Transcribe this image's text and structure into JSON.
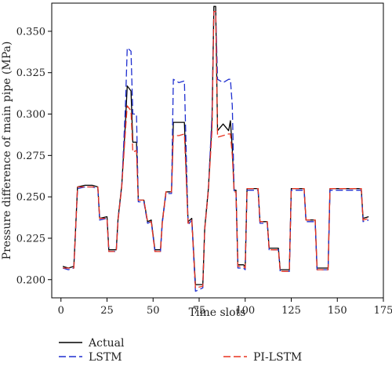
{
  "chart_data": {
    "type": "line",
    "title": "",
    "xlabel": "Time slots",
    "ylabel": "Pressure difference of main pipe (MPa)",
    "xlim": [
      -5,
      175
    ],
    "ylim": [
      0.189,
      0.367
    ],
    "x_ticks": [
      0,
      25,
      50,
      75,
      100,
      125,
      150,
      175
    ],
    "y_ticks": [
      0.2,
      0.225,
      0.25,
      0.275,
      0.3,
      0.325,
      0.35
    ],
    "y_tick_labels": [
      "0.200",
      "0.225",
      "0.250",
      "0.275",
      "0.300",
      "0.325",
      "0.350"
    ],
    "grid": false,
    "legend": "bottom",
    "series": [
      {
        "name": "Actual",
        "color": "#000000",
        "style": "solid",
        "points": [
          [
            1,
            0.208
          ],
          [
            4,
            0.207
          ],
          [
            7,
            0.208
          ],
          [
            9,
            0.256
          ],
          [
            13,
            0.257
          ],
          [
            17,
            0.257
          ],
          [
            20,
            0.256
          ],
          [
            21,
            0.237
          ],
          [
            25,
            0.238
          ],
          [
            26,
            0.218
          ],
          [
            30,
            0.218
          ],
          [
            31,
            0.237
          ],
          [
            33,
            0.257
          ],
          [
            35,
            0.295
          ],
          [
            36,
            0.317
          ],
          [
            38,
            0.314
          ],
          [
            39,
            0.283
          ],
          [
            41,
            0.283
          ],
          [
            42,
            0.248
          ],
          [
            45,
            0.248
          ],
          [
            47,
            0.235
          ],
          [
            49,
            0.236
          ],
          [
            51,
            0.218
          ],
          [
            54,
            0.218
          ],
          [
            55,
            0.235
          ],
          [
            57,
            0.253
          ],
          [
            60,
            0.253
          ],
          [
            61,
            0.295
          ],
          [
            64,
            0.295
          ],
          [
            67,
            0.295
          ],
          [
            69,
            0.235
          ],
          [
            71,
            0.237
          ],
          [
            73,
            0.197
          ],
          [
            77,
            0.197
          ],
          [
            78,
            0.231
          ],
          [
            80,
            0.255
          ],
          [
            82,
            0.295
          ],
          [
            83,
            0.365
          ],
          [
            84,
            0.365
          ],
          [
            85,
            0.29
          ],
          [
            88,
            0.294
          ],
          [
            91,
            0.29
          ],
          [
            92,
            0.296
          ],
          [
            93,
            0.279
          ],
          [
            94,
            0.254
          ],
          [
            95,
            0.254
          ],
          [
            96,
            0.209
          ],
          [
            99,
            0.209
          ],
          [
            100,
            0.208
          ],
          [
            101,
            0.255
          ],
          [
            105,
            0.255
          ],
          [
            107,
            0.255
          ],
          [
            108,
            0.235
          ],
          [
            112,
            0.235
          ],
          [
            113,
            0.219
          ],
          [
            116,
            0.219
          ],
          [
            118,
            0.219
          ],
          [
            119,
            0.206
          ],
          [
            123,
            0.206
          ],
          [
            124,
            0.206
          ],
          [
            125,
            0.255
          ],
          [
            130,
            0.255
          ],
          [
            132,
            0.255
          ],
          [
            133,
            0.236
          ],
          [
            136,
            0.236
          ],
          [
            138,
            0.236
          ],
          [
            139,
            0.207
          ],
          [
            143,
            0.207
          ],
          [
            145,
            0.207
          ],
          [
            146,
            0.255
          ],
          [
            150,
            0.255
          ],
          [
            157,
            0.255
          ],
          [
            160,
            0.255
          ],
          [
            161,
            0.255
          ],
          [
            163,
            0.255
          ],
          [
            164,
            0.237
          ],
          [
            167,
            0.238
          ]
        ]
      },
      {
        "name": "LSTM",
        "color": "#1f2fd0",
        "style": "dashed",
        "points": [
          [
            1,
            0.207
          ],
          [
            4,
            0.206
          ],
          [
            7,
            0.207
          ],
          [
            9,
            0.255
          ],
          [
            13,
            0.256
          ],
          [
            17,
            0.256
          ],
          [
            20,
            0.255
          ],
          [
            21,
            0.236
          ],
          [
            25,
            0.237
          ],
          [
            26,
            0.217
          ],
          [
            30,
            0.217
          ],
          [
            31,
            0.236
          ],
          [
            33,
            0.256
          ],
          [
            35,
            0.305
          ],
          [
            36,
            0.34
          ],
          [
            38,
            0.338
          ],
          [
            39,
            0.3
          ],
          [
            41,
            0.3
          ],
          [
            42,
            0.247
          ],
          [
            45,
            0.247
          ],
          [
            47,
            0.234
          ],
          [
            49,
            0.235
          ],
          [
            51,
            0.217
          ],
          [
            54,
            0.217
          ],
          [
            55,
            0.234
          ],
          [
            57,
            0.252
          ],
          [
            60,
            0.252
          ],
          [
            61,
            0.321
          ],
          [
            64,
            0.319
          ],
          [
            67,
            0.32
          ],
          [
            69,
            0.233
          ],
          [
            71,
            0.236
          ],
          [
            73,
            0.193
          ],
          [
            77,
            0.195
          ],
          [
            78,
            0.23
          ],
          [
            80,
            0.254
          ],
          [
            82,
            0.3
          ],
          [
            83,
            0.362
          ],
          [
            84,
            0.362
          ],
          [
            85,
            0.321
          ],
          [
            88,
            0.319
          ],
          [
            91,
            0.321
          ],
          [
            92,
            0.321
          ],
          [
            93,
            0.305
          ],
          [
            94,
            0.253
          ],
          [
            95,
            0.253
          ],
          [
            96,
            0.207
          ],
          [
            99,
            0.207
          ],
          [
            100,
            0.206
          ],
          [
            101,
            0.254
          ],
          [
            105,
            0.254
          ],
          [
            107,
            0.254
          ],
          [
            108,
            0.234
          ],
          [
            112,
            0.234
          ],
          [
            113,
            0.218
          ],
          [
            116,
            0.218
          ],
          [
            118,
            0.218
          ],
          [
            119,
            0.205
          ],
          [
            123,
            0.205
          ],
          [
            124,
            0.205
          ],
          [
            125,
            0.254
          ],
          [
            130,
            0.254
          ],
          [
            132,
            0.254
          ],
          [
            133,
            0.235
          ],
          [
            136,
            0.235
          ],
          [
            138,
            0.235
          ],
          [
            139,
            0.206
          ],
          [
            143,
            0.206
          ],
          [
            145,
            0.206
          ],
          [
            146,
            0.254
          ],
          [
            150,
            0.254
          ],
          [
            157,
            0.254
          ],
          [
            160,
            0.254
          ],
          [
            161,
            0.254
          ],
          [
            163,
            0.254
          ],
          [
            164,
            0.235
          ],
          [
            167,
            0.236
          ]
        ]
      },
      {
        "name": "PI-LSTM",
        "color": "#e8321e",
        "style": "dashed",
        "points": [
          [
            1,
            0.207
          ],
          [
            4,
            0.207
          ],
          [
            7,
            0.207
          ],
          [
            9,
            0.256
          ],
          [
            13,
            0.256
          ],
          [
            17,
            0.256
          ],
          [
            20,
            0.256
          ],
          [
            21,
            0.237
          ],
          [
            25,
            0.237
          ],
          [
            26,
            0.217
          ],
          [
            30,
            0.217
          ],
          [
            31,
            0.236
          ],
          [
            33,
            0.256
          ],
          [
            35,
            0.29
          ],
          [
            36,
            0.305
          ],
          [
            38,
            0.302
          ],
          [
            39,
            0.277
          ],
          [
            41,
            0.278
          ],
          [
            42,
            0.248
          ],
          [
            45,
            0.248
          ],
          [
            47,
            0.235
          ],
          [
            49,
            0.235
          ],
          [
            51,
            0.217
          ],
          [
            54,
            0.217
          ],
          [
            55,
            0.234
          ],
          [
            57,
            0.253
          ],
          [
            60,
            0.253
          ],
          [
            61,
            0.287
          ],
          [
            64,
            0.287
          ],
          [
            67,
            0.288
          ],
          [
            69,
            0.234
          ],
          [
            71,
            0.236
          ],
          [
            73,
            0.195
          ],
          [
            77,
            0.196
          ],
          [
            78,
            0.23
          ],
          [
            80,
            0.254
          ],
          [
            82,
            0.29
          ],
          [
            83,
            0.362
          ],
          [
            84,
            0.362
          ],
          [
            85,
            0.286
          ],
          [
            88,
            0.287
          ],
          [
            91,
            0.288
          ],
          [
            92,
            0.288
          ],
          [
            93,
            0.275
          ],
          [
            94,
            0.253
          ],
          [
            95,
            0.253
          ],
          [
            96,
            0.208
          ],
          [
            99,
            0.208
          ],
          [
            100,
            0.207
          ],
          [
            101,
            0.255
          ],
          [
            105,
            0.255
          ],
          [
            107,
            0.255
          ],
          [
            108,
            0.235
          ],
          [
            112,
            0.235
          ],
          [
            113,
            0.218
          ],
          [
            116,
            0.218
          ],
          [
            118,
            0.218
          ],
          [
            119,
            0.205
          ],
          [
            123,
            0.205
          ],
          [
            124,
            0.205
          ],
          [
            125,
            0.255
          ],
          [
            130,
            0.255
          ],
          [
            132,
            0.255
          ],
          [
            133,
            0.236
          ],
          [
            136,
            0.236
          ],
          [
            138,
            0.236
          ],
          [
            139,
            0.206
          ],
          [
            143,
            0.206
          ],
          [
            145,
            0.206
          ],
          [
            146,
            0.255
          ],
          [
            150,
            0.255
          ],
          [
            157,
            0.255
          ],
          [
            160,
            0.255
          ],
          [
            161,
            0.255
          ],
          [
            163,
            0.255
          ],
          [
            164,
            0.236
          ],
          [
            167,
            0.237
          ]
        ]
      }
    ]
  }
}
